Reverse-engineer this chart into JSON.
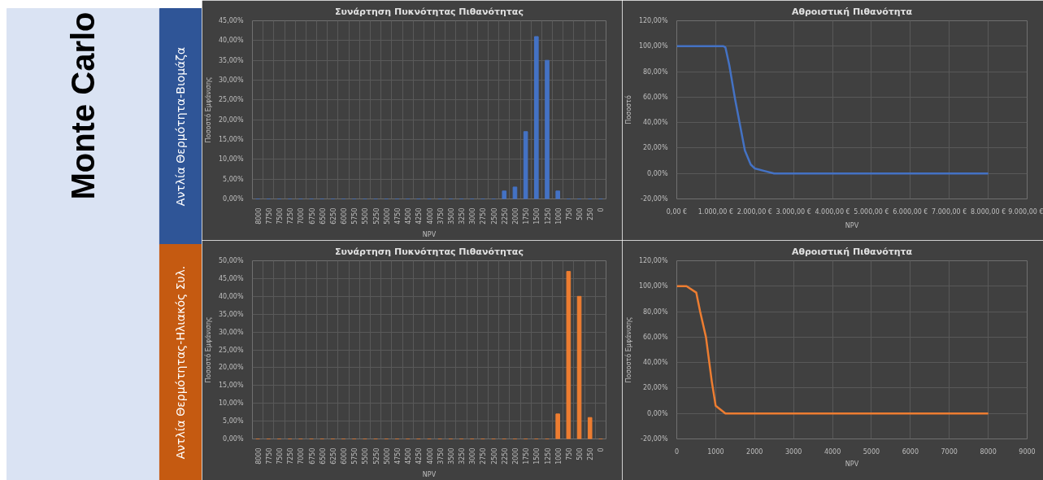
{
  "chart_data": [
    {
      "type": "other",
      "title": "Monte Carlo",
      "annotations": [
        "Αντλία Θερμότητα-Βιομάζα",
        "Αντλία Θερμότητας-Ηλιακός Συλ."
      ],
      "colors": [
        "#dae3f3",
        "#2f5597",
        "#c55a11"
      ]
    },
    {
      "type": "bar",
      "title": "Συνάρτηση Πυκνότητας Πιθανότητας",
      "xlabel": "NPV",
      "ylabel": "Ποσοστό Εμφάνισης",
      "categories": [
        "8000",
        "7750",
        "7500",
        "7250",
        "7000",
        "6750",
        "6500",
        "6250",
        "6000",
        "5750",
        "5500",
        "5250",
        "5000",
        "4750",
        "4500",
        "4250",
        "4000",
        "3750",
        "3500",
        "3250",
        "3000",
        "2750",
        "2500",
        "2250",
        "2000",
        "1750",
        "1500",
        "1250",
        "1000",
        "750",
        "500",
        "250",
        "0"
      ],
      "values": [
        0,
        0,
        0,
        0,
        0,
        0,
        0,
        0,
        0,
        0,
        0,
        0,
        0,
        0,
        0,
        0,
        0,
        0,
        0,
        0,
        0,
        0,
        0,
        2,
        3,
        17,
        41,
        35,
        2,
        0,
        0,
        0,
        0
      ],
      "color": "#4472c4",
      "ylim": [
        0,
        45
      ],
      "yticks": [
        {
          "value": 0,
          "label": "0,00%"
        },
        {
          "value": 5,
          "label": "5,00%"
        },
        {
          "value": 10,
          "label": "10,00%"
        },
        {
          "value": 15,
          "label": "15,00%"
        },
        {
          "value": 20,
          "label": "20,00%"
        },
        {
          "value": 25,
          "label": "25,00%"
        },
        {
          "value": 30,
          "label": "30,00%"
        },
        {
          "value": 35,
          "label": "35,00%"
        },
        {
          "value": 40,
          "label": "40,00%"
        },
        {
          "value": 45,
          "label": "45,00%"
        }
      ],
      "grid": true
    },
    {
      "type": "line",
      "title": "Αθροιστική Πιθανότητα",
      "xlabel": "NPV",
      "ylabel": "Ποσοστό",
      "x": [
        0,
        1000,
        1200,
        1250,
        1350,
        1500,
        1600,
        1750,
        1900,
        2000,
        2250,
        2500,
        8000
      ],
      "values": [
        100,
        100,
        100,
        99,
        85,
        58,
        42,
        18,
        7,
        4,
        2,
        0,
        0
      ],
      "color": "#4472c4",
      "xlim": [
        0,
        9000
      ],
      "ylim": [
        -20,
        120
      ],
      "xticks": [
        {
          "value": 0,
          "label": "0,00 €"
        },
        {
          "value": 1000,
          "label": "1.000,00 €"
        },
        {
          "value": 2000,
          "label": "2.000,00 €"
        },
        {
          "value": 3000,
          "label": "3.000,00 €"
        },
        {
          "value": 4000,
          "label": "4.000,00 €"
        },
        {
          "value": 5000,
          "label": "5.000,00 €"
        },
        {
          "value": 6000,
          "label": "6.000,00 €"
        },
        {
          "value": 7000,
          "label": "7.000,00 €"
        },
        {
          "value": 8000,
          "label": "8.000,00 €"
        },
        {
          "value": 9000,
          "label": "9.000,00 €"
        }
      ],
      "yticks": [
        {
          "value": -20,
          "label": "-20,00%"
        },
        {
          "value": 0,
          "label": "0,00%"
        },
        {
          "value": 20,
          "label": "20,00%"
        },
        {
          "value": 40,
          "label": "40,00%"
        },
        {
          "value": 60,
          "label": "60,00%"
        },
        {
          "value": 80,
          "label": "80,00%"
        },
        {
          "value": 100,
          "label": "100,00%"
        },
        {
          "value": 120,
          "label": "120,00%"
        }
      ],
      "grid": true
    },
    {
      "type": "bar",
      "title": "Συνάρτηση Πυκνότητας Πιθανότητας",
      "xlabel": "NPV",
      "ylabel": "Ποσοστό Εμφάνισης",
      "categories": [
        "8000",
        "7750",
        "7500",
        "7250",
        "7000",
        "6750",
        "6500",
        "6250",
        "6000",
        "5750",
        "5500",
        "5250",
        "5000",
        "4750",
        "4500",
        "4250",
        "4000",
        "3750",
        "3500",
        "3250",
        "3000",
        "2750",
        "2500",
        "2250",
        "2000",
        "1750",
        "1500",
        "1250",
        "1000",
        "750",
        "500",
        "250",
        "0"
      ],
      "values": [
        0,
        0,
        0,
        0,
        0,
        0,
        0,
        0,
        0,
        0,
        0,
        0,
        0,
        0,
        0,
        0,
        0,
        0,
        0,
        0,
        0,
        0,
        0,
        0,
        0,
        0,
        0,
        0,
        7,
        47,
        40,
        6,
        0
      ],
      "color": "#ed7d31",
      "ylim": [
        0,
        50
      ],
      "yticks": [
        {
          "value": 0,
          "label": "0,00%"
        },
        {
          "value": 5,
          "label": "5,00%"
        },
        {
          "value": 10,
          "label": "10,00%"
        },
        {
          "value": 15,
          "label": "15,00%"
        },
        {
          "value": 20,
          "label": "20,00%"
        },
        {
          "value": 25,
          "label": "25,00%"
        },
        {
          "value": 30,
          "label": "30,00%"
        },
        {
          "value": 35,
          "label": "35,00%"
        },
        {
          "value": 40,
          "label": "40,00%"
        },
        {
          "value": 45,
          "label": "45,00%"
        },
        {
          "value": 50,
          "label": "50,00%"
        }
      ],
      "grid": true
    },
    {
      "type": "line",
      "title": "Αθροιστική Πιθανότητα",
      "xlabel": "NPV",
      "ylabel": "Ποσοστό Εμφάνισης",
      "x": [
        0,
        250,
        500,
        600,
        750,
        900,
        1000,
        1250,
        1500,
        8000
      ],
      "values": [
        100,
        100,
        95,
        80,
        60,
        25,
        6,
        0,
        0,
        0
      ],
      "color": "#ed7d31",
      "xlim": [
        0,
        9000
      ],
      "ylim": [
        -20,
        120
      ],
      "xticks": [
        0,
        1000,
        2000,
        3000,
        4000,
        5000,
        6000,
        7000,
        8000,
        9000
      ],
      "yticks": [
        {
          "value": -20,
          "label": "-20,00%"
        },
        {
          "value": 0,
          "label": "0,00%"
        },
        {
          "value": 20,
          "label": "20,00%"
        },
        {
          "value": 40,
          "label": "40,00%"
        },
        {
          "value": 60,
          "label": "60,00%"
        },
        {
          "value": 80,
          "label": "80,00%"
        },
        {
          "value": 100,
          "label": "100,00%"
        },
        {
          "value": 120,
          "label": "120,00%"
        }
      ],
      "grid": true
    }
  ]
}
